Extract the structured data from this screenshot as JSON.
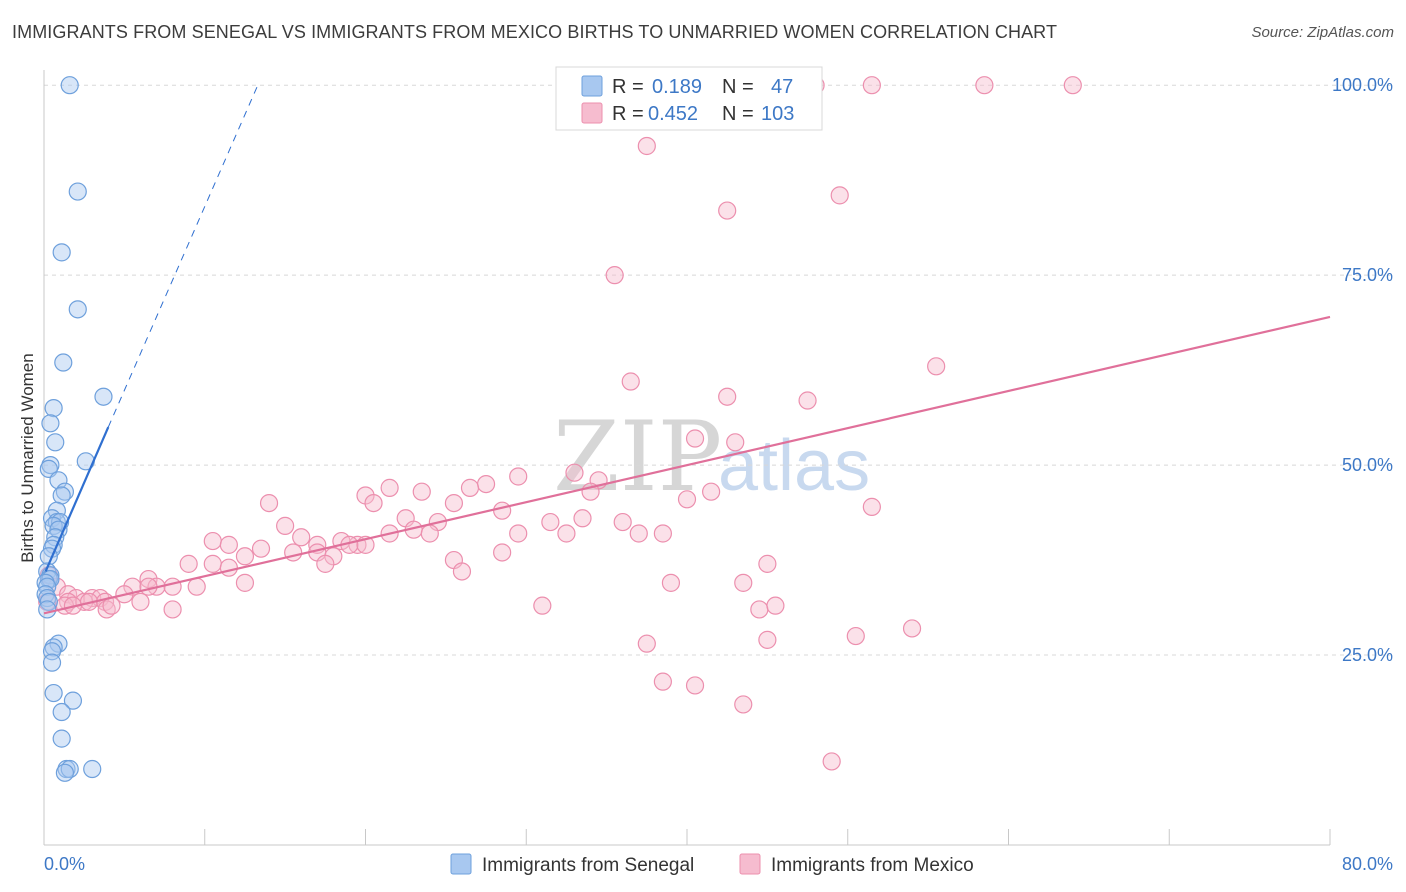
{
  "title": "IMMIGRANTS FROM SENEGAL VS IMMIGRANTS FROM MEXICO BIRTHS TO UNMARRIED WOMEN CORRELATION CHART",
  "source": "Source: ZipAtlas.com",
  "watermark": {
    "zip": "ZIP",
    "atlas": "atlas"
  },
  "colors": {
    "senegal_fill": "#a8c8f0",
    "senegal_stroke": "#6ea0dc",
    "senegal_line": "#2f6fd0",
    "mexico_fill": "#f6bccf",
    "mexico_stroke": "#ec8fae",
    "mexico_line": "#e0709a",
    "grid": "#d8d8d8",
    "axis_text": "#3d78c6"
  },
  "legend": {
    "r_label": "R =",
    "n_label": "N =",
    "senegal": {
      "r": "0.189",
      "n": "47"
    },
    "mexico": {
      "r": "0.452",
      "n": "103"
    }
  },
  "chart_data": {
    "type": "scatter",
    "title": "IMMIGRANTS FROM SENEGAL VS IMMIGRANTS FROM MEXICO BIRTHS TO UNMARRIED WOMEN CORRELATION CHART",
    "xlabel": "",
    "ylabel": "Births to Unmarried Women",
    "xlim": [
      0,
      80
    ],
    "ylim": [
      0,
      102
    ],
    "x_tick_labels": [
      "0.0%",
      "80.0%"
    ],
    "y_ticks": [
      25,
      50,
      75,
      100
    ],
    "y_tick_labels": [
      "25.0%",
      "50.0%",
      "75.0%",
      "100.0%"
    ],
    "legend_position": "top-center",
    "series": [
      {
        "name": "Immigrants from Senegal",
        "trend": {
          "x0": 0.1,
          "y0": 36,
          "x1": 4.0,
          "y1": 55,
          "dash_x1": 13.3,
          "dash_y1": 100
        },
        "points": [
          [
            1.6,
            100
          ],
          [
            2.1,
            86
          ],
          [
            1.1,
            78
          ],
          [
            2.1,
            70.5
          ],
          [
            1.2,
            63.5
          ],
          [
            3.7,
            59
          ],
          [
            0.6,
            57.5
          ],
          [
            0.4,
            55.5
          ],
          [
            0.7,
            53
          ],
          [
            2.6,
            50.5
          ],
          [
            0.4,
            50
          ],
          [
            0.3,
            49.5
          ],
          [
            0.9,
            48
          ],
          [
            1.3,
            46.5
          ],
          [
            1.1,
            46
          ],
          [
            0.8,
            44
          ],
          [
            0.5,
            43
          ],
          [
            0.8,
            42.5
          ],
          [
            1.0,
            42.5
          ],
          [
            0.6,
            42
          ],
          [
            0.9,
            41.5
          ],
          [
            0.7,
            40.5
          ],
          [
            0.6,
            39.5
          ],
          [
            0.5,
            39
          ],
          [
            0.3,
            38
          ],
          [
            0.2,
            36
          ],
          [
            0.4,
            35.5
          ],
          [
            0.3,
            35
          ],
          [
            0.4,
            35
          ],
          [
            0.1,
            34.5
          ],
          [
            0.2,
            34
          ],
          [
            0.1,
            33
          ],
          [
            0.2,
            32.5
          ],
          [
            0.3,
            32
          ],
          [
            0.2,
            31
          ],
          [
            0.9,
            26.5
          ],
          [
            0.6,
            26
          ],
          [
            0.5,
            25.5
          ],
          [
            0.5,
            24
          ],
          [
            0.6,
            20
          ],
          [
            1.8,
            19
          ],
          [
            1.1,
            17.5
          ],
          [
            1.1,
            14
          ],
          [
            1.4,
            10
          ],
          [
            1.6,
            10
          ],
          [
            3.0,
            10
          ],
          [
            1.3,
            9.5
          ]
        ]
      },
      {
        "name": "Immigrants from Mexico",
        "trend": {
          "x0": 0,
          "y0": 30.5,
          "x1": 80,
          "y1": 69.5
        },
        "points": [
          [
            48,
            100
          ],
          [
            51.5,
            100
          ],
          [
            58.5,
            100
          ],
          [
            64,
            100
          ],
          [
            37.5,
            92
          ],
          [
            49.5,
            85.5
          ],
          [
            42.5,
            83.5
          ],
          [
            35.5,
            75
          ],
          [
            55.5,
            63
          ],
          [
            36.5,
            61
          ],
          [
            42.5,
            59
          ],
          [
            47.5,
            58.5
          ],
          [
            40.5,
            53.5
          ],
          [
            43,
            53
          ],
          [
            33,
            49
          ],
          [
            29.5,
            48.5
          ],
          [
            27.5,
            47.5
          ],
          [
            34.5,
            48
          ],
          [
            21.5,
            47
          ],
          [
            23.5,
            46.5
          ],
          [
            26.5,
            47
          ],
          [
            41.5,
            46.5
          ],
          [
            20,
            46
          ],
          [
            20.5,
            45
          ],
          [
            25.5,
            45
          ],
          [
            14,
            45
          ],
          [
            40,
            45.5
          ],
          [
            34,
            46.5
          ],
          [
            28.5,
            44
          ],
          [
            51.5,
            44.5
          ],
          [
            33.5,
            43
          ],
          [
            24.5,
            42.5
          ],
          [
            36,
            42.5
          ],
          [
            31.5,
            42.5
          ],
          [
            22.5,
            43
          ],
          [
            15,
            42
          ],
          [
            23,
            41.5
          ],
          [
            21.5,
            41
          ],
          [
            29.5,
            41
          ],
          [
            38.5,
            41
          ],
          [
            37,
            41
          ],
          [
            32.5,
            41
          ],
          [
            24,
            41
          ],
          [
            16,
            40.5
          ],
          [
            17,
            39.5
          ],
          [
            10.5,
            40
          ],
          [
            11.5,
            39.5
          ],
          [
            13.5,
            39
          ],
          [
            18.5,
            40
          ],
          [
            19.5,
            39.5
          ],
          [
            19,
            39.5
          ],
          [
            20,
            39.5
          ],
          [
            15.5,
            38.5
          ],
          [
            17,
            38.5
          ],
          [
            12.5,
            38
          ],
          [
            18,
            38
          ],
          [
            28.5,
            38.5
          ],
          [
            25.5,
            37.5
          ],
          [
            9,
            37
          ],
          [
            10.5,
            37
          ],
          [
            17.5,
            37
          ],
          [
            26,
            36
          ],
          [
            11.5,
            36.5
          ],
          [
            45,
            37
          ],
          [
            6.5,
            35
          ],
          [
            5.5,
            34
          ],
          [
            7,
            34
          ],
          [
            9.5,
            34
          ],
          [
            12.5,
            34.5
          ],
          [
            6.5,
            34
          ],
          [
            8,
            34
          ],
          [
            39,
            34.5
          ],
          [
            43.5,
            34.5
          ],
          [
            0.3,
            35.5
          ],
          [
            0.8,
            34
          ],
          [
            1.5,
            33
          ],
          [
            2,
            32.5
          ],
          [
            3,
            32.5
          ],
          [
            3.5,
            32.5
          ],
          [
            5,
            33
          ],
          [
            6,
            32
          ],
          [
            1.5,
            32
          ],
          [
            2.5,
            32
          ],
          [
            2.8,
            32
          ],
          [
            3.8,
            32
          ],
          [
            0.2,
            32
          ],
          [
            1.3,
            31.5
          ],
          [
            1.8,
            31.5
          ],
          [
            3.9,
            31
          ],
          [
            4.2,
            31.5
          ],
          [
            8,
            31
          ],
          [
            31,
            31.5
          ],
          [
            44.5,
            31
          ],
          [
            45.5,
            31.5
          ],
          [
            37.5,
            26.5
          ],
          [
            45,
            27
          ],
          [
            50.5,
            27.5
          ],
          [
            54,
            28.5
          ],
          [
            38.5,
            21.5
          ],
          [
            40.5,
            21
          ],
          [
            43.5,
            18.5
          ],
          [
            49,
            11
          ]
        ]
      }
    ]
  },
  "bottom_legend": {
    "senegal": "Immigrants from Senegal",
    "mexico": "Immigrants from Mexico"
  }
}
